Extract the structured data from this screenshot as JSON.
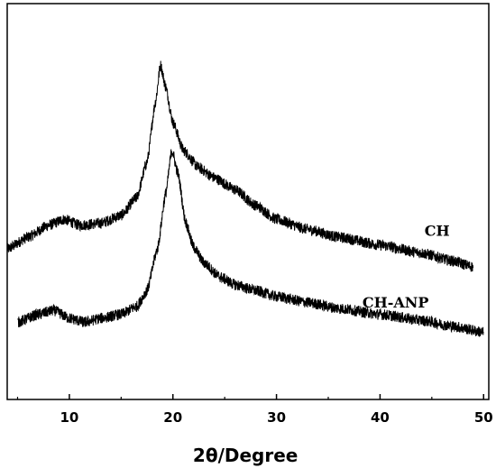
{
  "chart_data": {
    "type": "line",
    "title": "",
    "xlabel": "2θ/Degree",
    "ylabel": "",
    "xlim": [
      4,
      50.5
    ],
    "ylim": [
      0,
      1
    ],
    "grid": false,
    "x_ticks": [
      10,
      20,
      30,
      40,
      50
    ],
    "x_tick_labels": [
      "10",
      "20",
      "30",
      "40",
      "50"
    ],
    "y_ticks_shown": false,
    "series": [
      {
        "name": "CH",
        "x_range": [
          4,
          49
        ],
        "points": [
          [
            4,
            0.38
          ],
          [
            6,
            0.41
          ],
          [
            8,
            0.44
          ],
          [
            9.5,
            0.455
          ],
          [
            11,
            0.44
          ],
          [
            13,
            0.445
          ],
          [
            15,
            0.465
          ],
          [
            16.5,
            0.51
          ],
          [
            17.5,
            0.6
          ],
          [
            18.3,
            0.75
          ],
          [
            18.8,
            0.845
          ],
          [
            19.3,
            0.79
          ],
          [
            20,
            0.7
          ],
          [
            21,
            0.63
          ],
          [
            22.5,
            0.585
          ],
          [
            24,
            0.56
          ],
          [
            26,
            0.53
          ],
          [
            28,
            0.49
          ],
          [
            30,
            0.455
          ],
          [
            33,
            0.43
          ],
          [
            36,
            0.41
          ],
          [
            40,
            0.39
          ],
          [
            44,
            0.37
          ],
          [
            47,
            0.35
          ],
          [
            49,
            0.335
          ]
        ]
      },
      {
        "name": "CH-ANP",
        "x_range": [
          5,
          50
        ],
        "points": [
          [
            5,
            0.195
          ],
          [
            7,
            0.215
          ],
          [
            8.5,
            0.225
          ],
          [
            10,
            0.205
          ],
          [
            11.5,
            0.195
          ],
          [
            13,
            0.205
          ],
          [
            15,
            0.215
          ],
          [
            16.5,
            0.235
          ],
          [
            17.5,
            0.275
          ],
          [
            18.5,
            0.38
          ],
          [
            19.3,
            0.52
          ],
          [
            19.9,
            0.63
          ],
          [
            20.5,
            0.57
          ],
          [
            21.2,
            0.45
          ],
          [
            22,
            0.385
          ],
          [
            23,
            0.345
          ],
          [
            24.5,
            0.31
          ],
          [
            26,
            0.29
          ],
          [
            28,
            0.275
          ],
          [
            30,
            0.26
          ],
          [
            33,
            0.245
          ],
          [
            36,
            0.23
          ],
          [
            40,
            0.215
          ],
          [
            44,
            0.2
          ],
          [
            47,
            0.185
          ],
          [
            50,
            0.17
          ]
        ]
      }
    ],
    "labels": {
      "ch": "CH",
      "ch_anp": "CH-ANP"
    }
  }
}
